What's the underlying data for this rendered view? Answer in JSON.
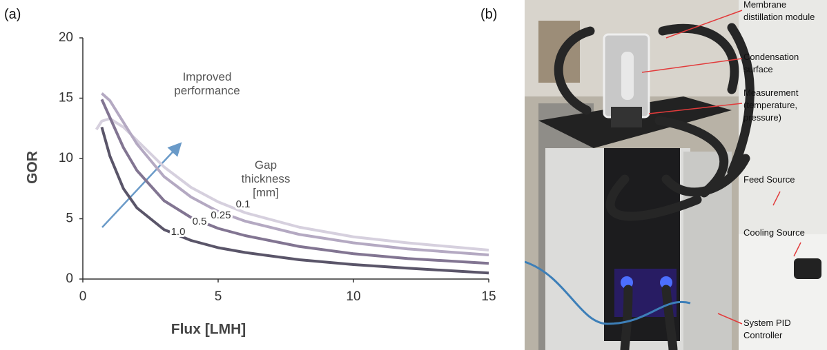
{
  "panel_labels": [
    "(a)",
    "(b)"
  ],
  "chart_data": {
    "type": "line",
    "x_label": "Flux [LMH]",
    "y_label": "GOR",
    "annotations": [
      "Improved performance",
      "Gap thickness [mm]"
    ],
    "x": [
      0.5,
      0.7,
      1,
      1.5,
      2,
      3,
      4,
      5,
      6,
      8,
      10,
      12,
      15
    ],
    "series": [
      {
        "name": "0.1",
        "color": "#d6d0de",
        "values": [
          12.4,
          13.1,
          13.3,
          12.6,
          11.5,
          9.3,
          7.6,
          6.4,
          5.5,
          4.3,
          3.5,
          3.0,
          2.4
        ]
      },
      {
        "name": "0.25",
        "color": "#b4a9c2",
        "values": [
          null,
          15.4,
          14.8,
          13.0,
          11.2,
          8.5,
          6.8,
          5.6,
          4.8,
          3.7,
          3.0,
          2.5,
          2.0
        ]
      },
      {
        "name": "0.5",
        "color": "#827592",
        "values": [
          null,
          14.9,
          13.4,
          10.9,
          9.0,
          6.5,
          5.1,
          4.2,
          3.6,
          2.7,
          2.1,
          1.7,
          1.3
        ]
      },
      {
        "name": "1.0",
        "color": "#5a5569",
        "values": [
          null,
          12.6,
          10.2,
          7.5,
          5.9,
          4.1,
          3.2,
          2.6,
          2.2,
          1.6,
          1.2,
          0.9,
          0.5
        ]
      }
    ],
    "xlim": [
      0,
      15
    ],
    "ylim": [
      0,
      20
    ],
    "xticks": [
      0,
      5,
      10,
      15
    ],
    "yticks": [
      0,
      5,
      10,
      15,
      20
    ],
    "grid": false
  },
  "photo": {
    "labels": [
      "Membrane distillation module",
      "Condensation surface",
      "Measurement (temperature, pressure)",
      "Feed Source",
      "Cooling Source",
      "System PID Controller"
    ]
  }
}
